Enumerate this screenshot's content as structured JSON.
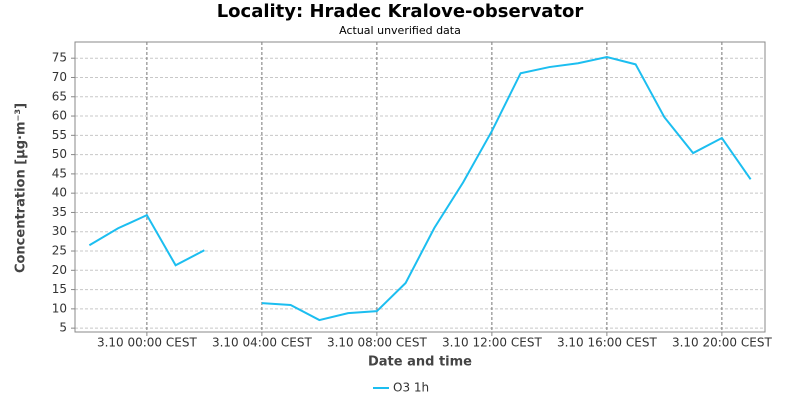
{
  "chart_data": {
    "type": "line",
    "title": "Locality: Hradec Kralove-observator",
    "subtitle": "Actual unverified data",
    "x_label": "Date and time",
    "y_label": "Concentration [µg·m⁻³]",
    "categories": [
      null,
      null,
      "3.10 00:00 CEST",
      null,
      null,
      null,
      "3.10 04:00 CEST",
      null,
      null,
      null,
      "3.10 08:00 CEST",
      null,
      null,
      null,
      "3.10 12:00 CEST",
      null,
      null,
      null,
      "3.10 16:00 CEST",
      null,
      null,
      null,
      "3.10 20:00 CEST",
      null
    ],
    "series": [
      {
        "name": "O3 1h",
        "color": "#1cbef0",
        "values": [
          26.5,
          30.9,
          34.3,
          21.3,
          25.2,
          null,
          11.5,
          11.0,
          7.1,
          8.9,
          9.4,
          16.7,
          31.0,
          42.8,
          56.1,
          71.1,
          72.7,
          73.7,
          75.3,
          73.4,
          59.7,
          50.4,
          54.3,
          43.6
        ]
      }
    ],
    "ylim": [
      4,
      79.2
    ],
    "yticks": [
      5,
      10,
      15,
      20,
      25,
      30,
      35,
      40,
      45,
      50,
      55,
      60,
      65,
      70,
      75
    ],
    "grid": true,
    "legend": "bottom"
  }
}
